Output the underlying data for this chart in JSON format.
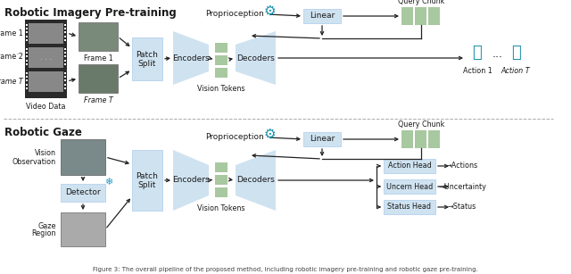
{
  "title_top": "Robotic Imagery Pre-training",
  "title_bottom": "Robotic Gaze",
  "caption": "Figure 3: The overall pipeline of the proposed method, including robotic imagery pre-training and robotic gaze pre-training.",
  "bg_color": "#ffffff",
  "box_light_blue": "#cfe2f0",
  "box_green": "#a8c8a0",
  "arrow_color": "#222222",
  "text_color": "#1a1a1a",
  "robot_color": "#1a8faa",
  "snowflake_color": "#2299cc",
  "font_size_title": 8.5,
  "font_size_label": 6.5,
  "font_size_small": 5.8,
  "font_size_caption": 5.0
}
